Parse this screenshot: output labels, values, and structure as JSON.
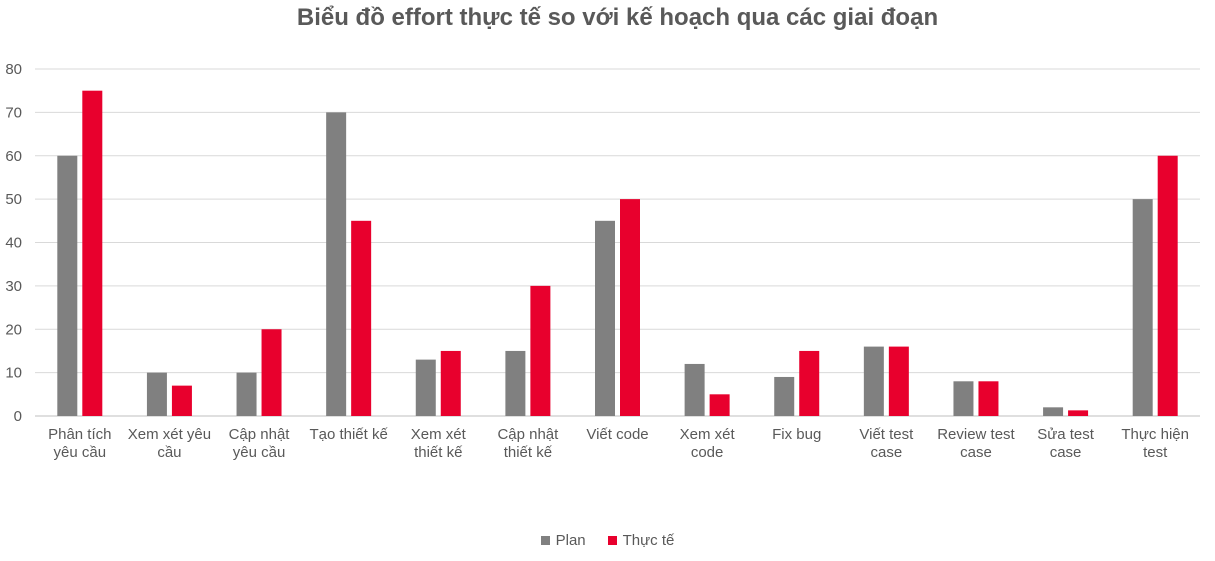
{
  "chart_data": {
    "type": "bar",
    "title": "Biểu đồ effort thực tế so với kế hoạch qua các giai đoạn",
    "categories": [
      [
        "Phân tích",
        "yêu cầu"
      ],
      [
        "Xem xét yêu",
        "cầu"
      ],
      [
        "Cập nhật",
        "yêu cầu"
      ],
      [
        "Tạo thiết kế"
      ],
      [
        "Xem xét",
        "thiết kế"
      ],
      [
        "Cập nhật",
        "thiết kế"
      ],
      [
        "Viết code"
      ],
      [
        "Xem xét",
        "code"
      ],
      [
        "Fix bug"
      ],
      [
        "Viết test",
        "case"
      ],
      [
        "Review test",
        "case"
      ],
      [
        "Sửa test",
        "case"
      ],
      [
        "Thực hiện",
        "test"
      ]
    ],
    "series": [
      {
        "name": "Plan",
        "color": "#808080",
        "values": [
          60,
          10,
          10,
          70,
          13,
          15,
          45,
          12,
          9,
          16,
          8,
          2,
          50
        ]
      },
      {
        "name": "Thực tế",
        "color": "#e8002d",
        "values": [
          75,
          7,
          20,
          45,
          15,
          30,
          50,
          5,
          15,
          16,
          8,
          1.3,
          60
        ]
      }
    ],
    "ylim": [
      0,
      80
    ],
    "yticks": [
      0,
      10,
      20,
      30,
      40,
      50,
      60,
      70,
      80
    ],
    "grid": true,
    "legend_position": "bottom"
  },
  "legend": {
    "plan": "Plan",
    "actual": "Thực tế"
  }
}
